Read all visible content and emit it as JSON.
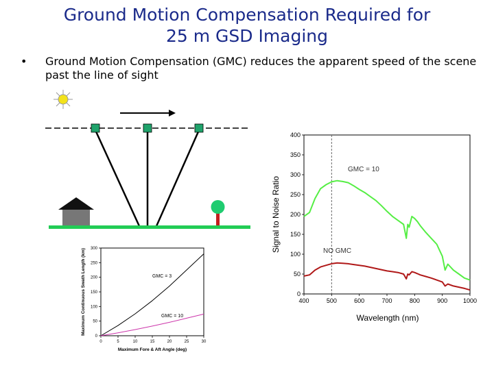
{
  "slide": {
    "title_line1": "Ground Motion Compensation Required for",
    "title_line2": "25 m GSD Imaging",
    "bullet_text": "Ground Motion Compensation (GMC) reduces the apparent speed of the scene past the line of sight"
  },
  "colors": {
    "title": "#1a2a8a",
    "ground": "#22cc55",
    "satellite": "#1fa36b",
    "gmc_curve": "#55ee44",
    "no_gmc_curve": "#b01818",
    "swath_gmc10": "#cc33aa"
  },
  "icons": [
    "sun-icon",
    "house-icon",
    "tree-icon",
    "motion-arrow-icon",
    "satellite-icon"
  ],
  "chart_data": [
    {
      "type": "line",
      "ylabel": "Signal to Noise Ratio",
      "xlabel": "Wavelength (nm)",
      "x_ticks": [
        "400",
        "500",
        "600",
        "700",
        "800",
        "900",
        "1000"
      ],
      "y_ticks": [
        "0",
        "50",
        "100",
        "150",
        "200",
        "250",
        "300",
        "350",
        "400"
      ],
      "xlim": [
        400,
        1000
      ],
      "ylim": [
        0,
        400
      ],
      "vertical_marker_x": 500,
      "series": [
        {
          "name": "GMC = 10",
          "x": [
            400,
            420,
            440,
            460,
            480,
            500,
            520,
            540,
            560,
            580,
            600,
            620,
            640,
            660,
            680,
            700,
            720,
            740,
            760,
            770,
            775,
            780,
            790,
            800,
            810,
            820,
            840,
            860,
            880,
            890,
            900,
            910,
            920,
            940,
            960,
            980,
            1000
          ],
          "y": [
            195,
            205,
            240,
            265,
            275,
            282,
            285,
            283,
            280,
            272,
            263,
            255,
            245,
            235,
            222,
            208,
            195,
            185,
            175,
            140,
            175,
            168,
            195,
            190,
            182,
            172,
            155,
            140,
            125,
            110,
            95,
            60,
            75,
            60,
            50,
            40,
            35
          ]
        },
        {
          "name": "NO GMC",
          "x": [
            400,
            420,
            440,
            460,
            480,
            500,
            520,
            540,
            560,
            580,
            600,
            620,
            640,
            660,
            680,
            700,
            720,
            740,
            760,
            770,
            775,
            780,
            790,
            800,
            810,
            820,
            840,
            860,
            880,
            900,
            910,
            920,
            940,
            960,
            980,
            1000
          ],
          "y": [
            45,
            48,
            60,
            68,
            72,
            76,
            78,
            77,
            76,
            74,
            72,
            70,
            67,
            64,
            61,
            58,
            56,
            54,
            50,
            38,
            50,
            48,
            56,
            54,
            51,
            48,
            44,
            40,
            35,
            30,
            20,
            25,
            20,
            17,
            14,
            10
          ]
        }
      ]
    },
    {
      "type": "line",
      "ylabel": "Maximum Continuous Swath Length (km)",
      "xlabel": "Maximum Fore & Aft Angle (deg)",
      "x_ticks": [
        "0",
        "5",
        "10",
        "15",
        "20",
        "25",
        "30"
      ],
      "y_ticks": [
        "0",
        "50",
        "100",
        "150",
        "200",
        "250",
        "300"
      ],
      "xlim": [
        0,
        30
      ],
      "ylim": [
        0,
        300
      ],
      "series": [
        {
          "name": "GMC = 3",
          "x": [
            0,
            5,
            10,
            15,
            20,
            25,
            30
          ],
          "y": [
            0,
            35,
            75,
            120,
            170,
            225,
            280
          ]
        },
        {
          "name": "GMC = 10",
          "x": [
            0,
            5,
            10,
            15,
            20,
            25,
            30
          ],
          "y": [
            0,
            10,
            21,
            33,
            46,
            60,
            74
          ]
        }
      ]
    }
  ]
}
